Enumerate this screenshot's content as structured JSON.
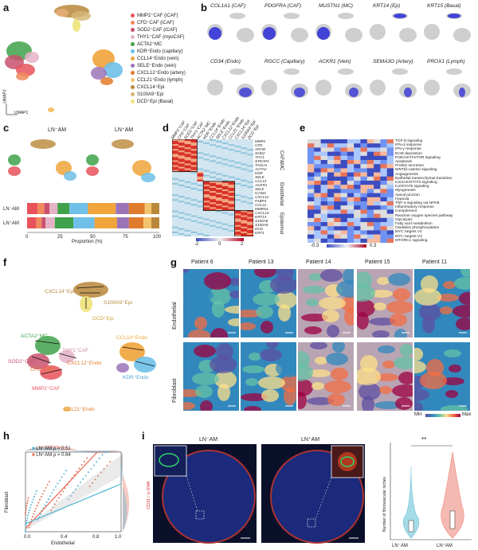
{
  "panels": {
    "a": {
      "label": "a",
      "axis_x": "UMAP1",
      "axis_y": "UMAP2",
      "legend": [
        {
          "text": "MMP2⁺CAF (iCAF)",
          "color": "#e8535b"
        },
        {
          "text": "CFD⁺CAF (iCAF)",
          "color": "#f08a5d"
        },
        {
          "text": "SOD2⁺CAF (iCAF)",
          "color": "#c9516e"
        },
        {
          "text": "THY1⁺CAF (myoCAF)",
          "color": "#e5b3c8"
        },
        {
          "text": "ACTA2⁺MC",
          "color": "#3fa24a"
        },
        {
          "text": "KDR⁺Endo (capillary)",
          "color": "#6ec0e8"
        },
        {
          "text": "CCL14⁺Endo (vein)",
          "color": "#f0a43a"
        },
        {
          "text": "SELE⁺Endo (vein)",
          "color": "#9b74b8"
        },
        {
          "text": "CXCL12⁺Endo (artery)",
          "color": "#e07b2c"
        },
        {
          "text": "CCL21⁺Endo (lymph)",
          "color": "#f2c36b"
        },
        {
          "text": "CXCL14⁺Epi",
          "color": "#b8873a"
        },
        {
          "text": "S100A9⁺Epi",
          "color": "#d6b676"
        },
        {
          "text": "DCD⁺Epi (Basal)",
          "color": "#efe37a"
        }
      ]
    },
    "b": {
      "label": "b",
      "genes_row1": [
        "COL1A1 (CAF)",
        "PDGFRA (CAF)",
        "MUSTN1 (MC)",
        "KRT14 (Ep)",
        "KRT15 (Basal)"
      ],
      "genes_row2": [
        "CD34 (Endo)",
        "RGCC (Capillary)",
        "ACKR1 (Vein)",
        "SEMA3G (Artery)",
        "PROX1 (Lymph)"
      ]
    },
    "c": {
      "label": "c",
      "group_neg": "LN⁻AM",
      "group_pos": "LN⁺AM",
      "xlabel": "Proportion (%)",
      "ticks": [
        "0",
        "25",
        "50",
        "75",
        "100"
      ],
      "bar_neg": [
        {
          "value": 8,
          "color": "#e8535b"
        },
        {
          "value": 5,
          "color": "#f08a5d"
        },
        {
          "value": 4,
          "color": "#c9516e"
        },
        {
          "value": 6,
          "color": "#e5b3c8"
        },
        {
          "value": 9,
          "color": "#3fa24a"
        },
        {
          "value": 14,
          "color": "#6ec0e8"
        },
        {
          "value": 21,
          "color": "#f0a43a"
        },
        {
          "value": 10,
          "color": "#9b74b8"
        },
        {
          "value": 12,
          "color": "#e07b2c"
        },
        {
          "value": 5,
          "color": "#f2c36b"
        },
        {
          "value": 6,
          "color": "#b8873a"
        }
      ],
      "bar_pos": [
        {
          "value": 7,
          "color": "#e8535b"
        },
        {
          "value": 4,
          "color": "#f08a5d"
        },
        {
          "value": 3,
          "color": "#c9516e"
        },
        {
          "value": 7,
          "color": "#e5b3c8"
        },
        {
          "value": 14,
          "color": "#3fa24a"
        },
        {
          "value": 16,
          "color": "#6ec0e8"
        },
        {
          "value": 17,
          "color": "#f0a43a"
        },
        {
          "value": 9,
          "color": "#9b74b8"
        },
        {
          "value": 11,
          "color": "#e07b2c"
        },
        {
          "value": 6,
          "color": "#f2c36b"
        },
        {
          "value": 6,
          "color": "#b8873a"
        }
      ]
    },
    "d": {
      "label": "d",
      "col_labels": [
        "MMP2⁺CAF",
        "CFD⁺CAF",
        "SOD2⁺CAF",
        "THY1⁺CAF",
        "ACTA2⁺MC",
        "KDR⁺Endo",
        "CCL14⁺Endo",
        "SELE⁺Endo",
        "CXCL12⁺Endo",
        "CCL21⁺Endo",
        "CXCL14⁺Epi",
        "S100A9⁺Epi",
        "DCD⁺Epi"
      ],
      "row_labels": [
        "MMP2",
        "CFD",
        "APOD",
        "SOD2",
        "THY1",
        "STEAP4",
        "TAGLN",
        "ACTA2",
        "KDR",
        "SELE",
        "CCL14",
        "ACKR1",
        "SELE",
        "ICAM1",
        "CXCL12",
        "FABP4",
        "CCL21",
        "MMRN1",
        "CXCL14",
        "KRT14",
        "S100A8",
        "S100A9",
        "DCD",
        "KRT1"
      ],
      "group_labels": [
        "CAF&MC",
        "Endothelial",
        "Epidermal"
      ],
      "scale": [
        "-2",
        "0",
        "2"
      ]
    },
    "e": {
      "label": "e",
      "pathways": [
        "TGF-β signaling",
        "IFN-α response",
        "IFN-γ response",
        "ECM deposition",
        "PI3K/AKT/mTOR signaling",
        "Apoptosis",
        "Protein secretion",
        "WNT/β-catenin signaling",
        "Angiogenesis",
        "Epithelial mesenchymal transition",
        "IL6/JAK/STAT3 signaling",
        "IL2/STAT5 signaling",
        "Myogenesis",
        "Apical junction",
        "Hypoxia",
        "TNF-α signaling via NFKB",
        "Inflammatory response",
        "Complement",
        "Reactive oxygen species pathway",
        "Glycolysis",
        "Fatty acid metabolism",
        "Oxidative phosphorylation",
        "MYC targets V1",
        "MYC targets V2",
        "MTORC1 signaling"
      ],
      "scale": [
        "-0.3",
        "0",
        "0.3"
      ]
    },
    "f": {
      "label": "f",
      "nodes": [
        "CXCL14⁺Epi",
        "S100A9⁺Epi",
        "DCD⁺Epi",
        "ACTA2⁺MC",
        "THY1⁺CAF",
        "SOD2⁺CAF",
        "CFD⁺CAF",
        "CXCL12⁺Endo",
        "CCL14⁺Endo",
        "KDR⁺Endo",
        "MMP2⁺CAF",
        "CCL21⁺Endo"
      ]
    },
    "g": {
      "label": "g",
      "patients": [
        "Patient 6",
        "Patient 13",
        "Patient 14",
        "Patient 15",
        "Patient 11"
      ],
      "rows": [
        "Endothelial",
        "Fibroblast"
      ],
      "scale_min": "Min",
      "scale_max": "Max"
    },
    "h": {
      "label": "h",
      "xlabel": "Endothelial",
      "ylabel": "Fibroblast",
      "legend": [
        {
          "text": "LN⁻AM",
          "stat": "ρ = 0.51",
          "color": "#4ab3d6"
        },
        {
          "text": "LN⁺AM",
          "stat": "ρ = 0.64",
          "color": "#e8664f"
        }
      ],
      "ticks": [
        "0.0",
        "0.4",
        "0.8",
        "1.0"
      ]
    },
    "i": {
      "label": "i",
      "img_neg": "LN⁻AM",
      "img_pos": "LN⁺AM",
      "stain_label": "CD31 / α-SMA",
      "violin_ylabel": "Number of fibrovascular niches",
      "violin_groups": [
        "LN⁻AM",
        "LN⁺AM"
      ],
      "signif": "**",
      "ticks": [
        "0",
        "10",
        "20",
        "30",
        "40"
      ]
    }
  }
}
